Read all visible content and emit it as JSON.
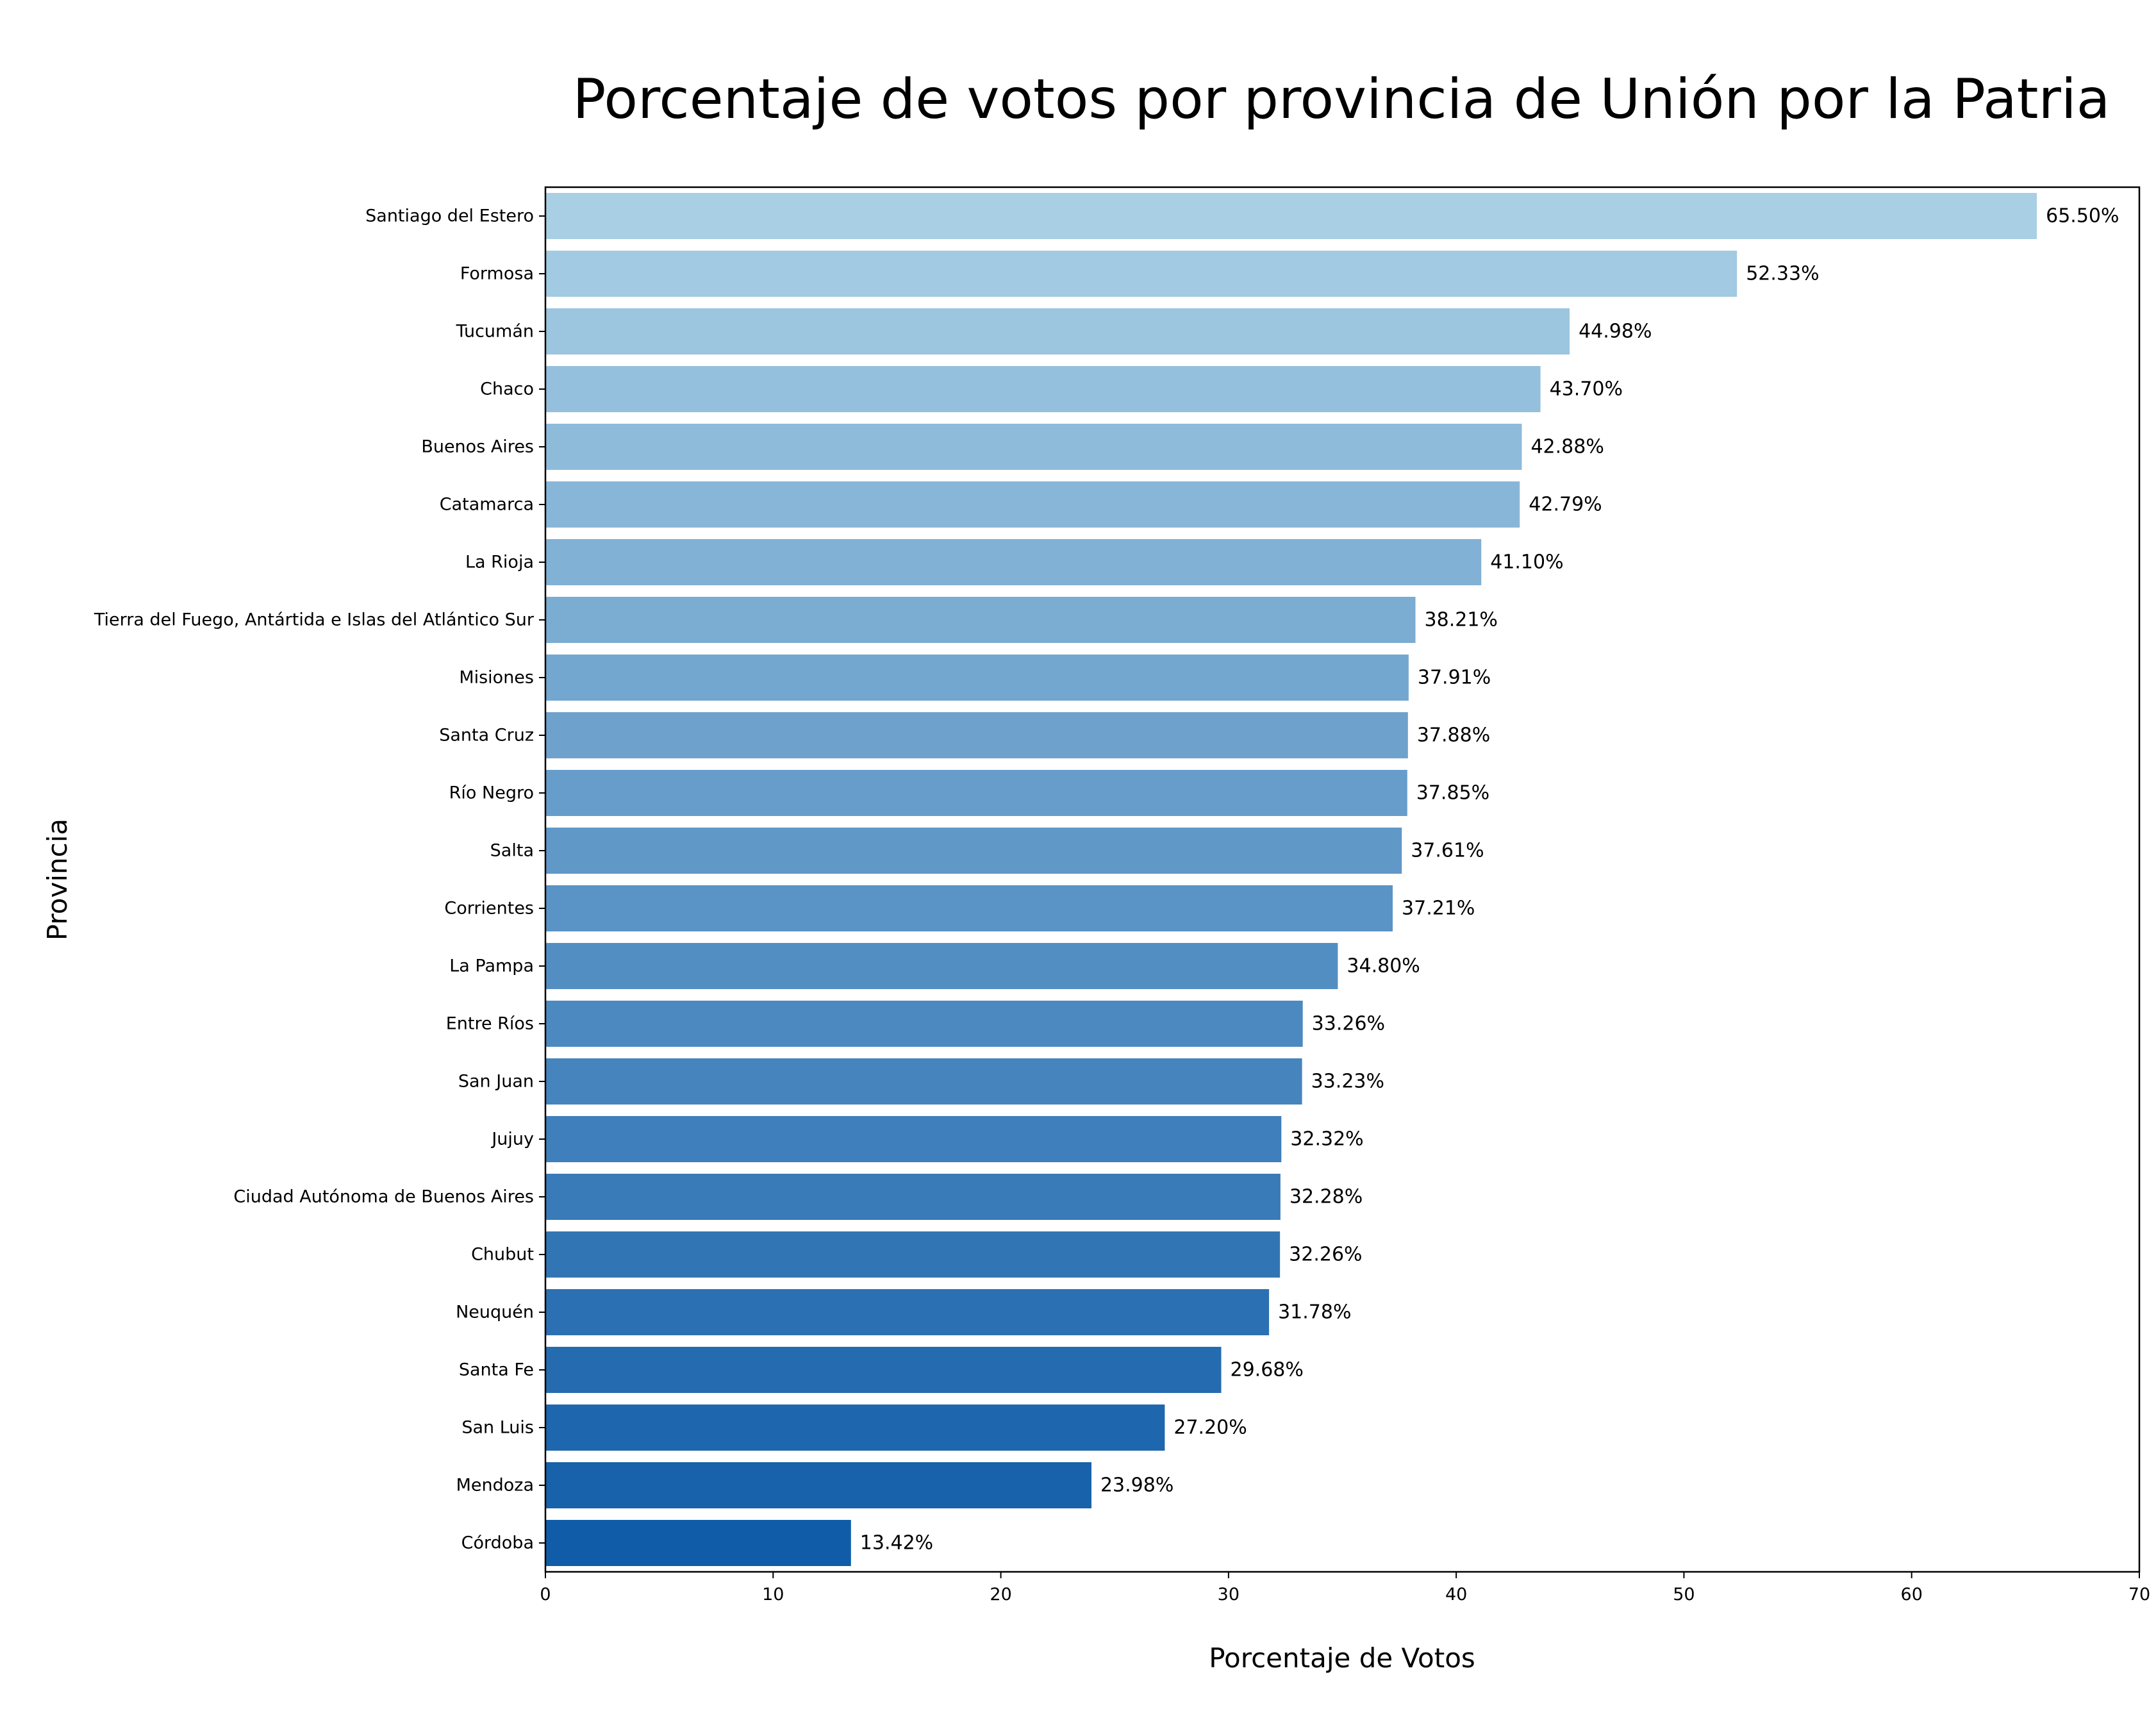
{
  "chart_data": {
    "type": "bar",
    "orientation": "horizontal",
    "title": "Porcentaje de votos por provincia de Unión por la Patria",
    "xlabel": "Porcentaje de Votos",
    "ylabel": "Provincia",
    "xlim": [
      0,
      70
    ],
    "xticks": [
      0,
      10,
      20,
      30,
      40,
      50,
      60,
      70
    ],
    "grid": false,
    "categories": [
      "Santiago del Estero",
      "Formosa",
      "Tucumán",
      "Chaco",
      "Buenos Aires",
      "Catamarca",
      "La Rioja",
      "Tierra del Fuego, Antártida e Islas del Atlántico Sur",
      "Misiones",
      "Santa Cruz",
      "Río Negro",
      "Salta",
      "Corrientes",
      "La Pampa",
      "Entre Ríos",
      "San Juan",
      "Jujuy",
      "Ciudad Autónoma de Buenos Aires",
      "Chubut",
      "Neuquén",
      "Santa Fe",
      "San Luis",
      "Mendoza",
      "Córdoba"
    ],
    "values": [
      65.5,
      52.33,
      44.98,
      43.7,
      42.88,
      42.79,
      41.1,
      38.21,
      37.91,
      37.88,
      37.85,
      37.61,
      37.21,
      34.8,
      33.26,
      33.23,
      32.32,
      32.28,
      32.26,
      31.78,
      29.68,
      27.2,
      23.98,
      13.42
    ],
    "value_labels": [
      "65.50%",
      "52.33%",
      "44.98%",
      "43.70%",
      "42.88%",
      "42.79%",
      "41.10%",
      "38.21%",
      "37.91%",
      "37.88%",
      "37.85%",
      "37.61%",
      "37.21%",
      "34.80%",
      "33.26%",
      "33.23%",
      "32.32%",
      "32.28%",
      "32.26%",
      "31.78%",
      "29.68%",
      "27.20%",
      "23.98%",
      "13.42%"
    ],
    "colors": {
      "start": "#a9cfe5",
      "end": "#115ca8"
    }
  }
}
